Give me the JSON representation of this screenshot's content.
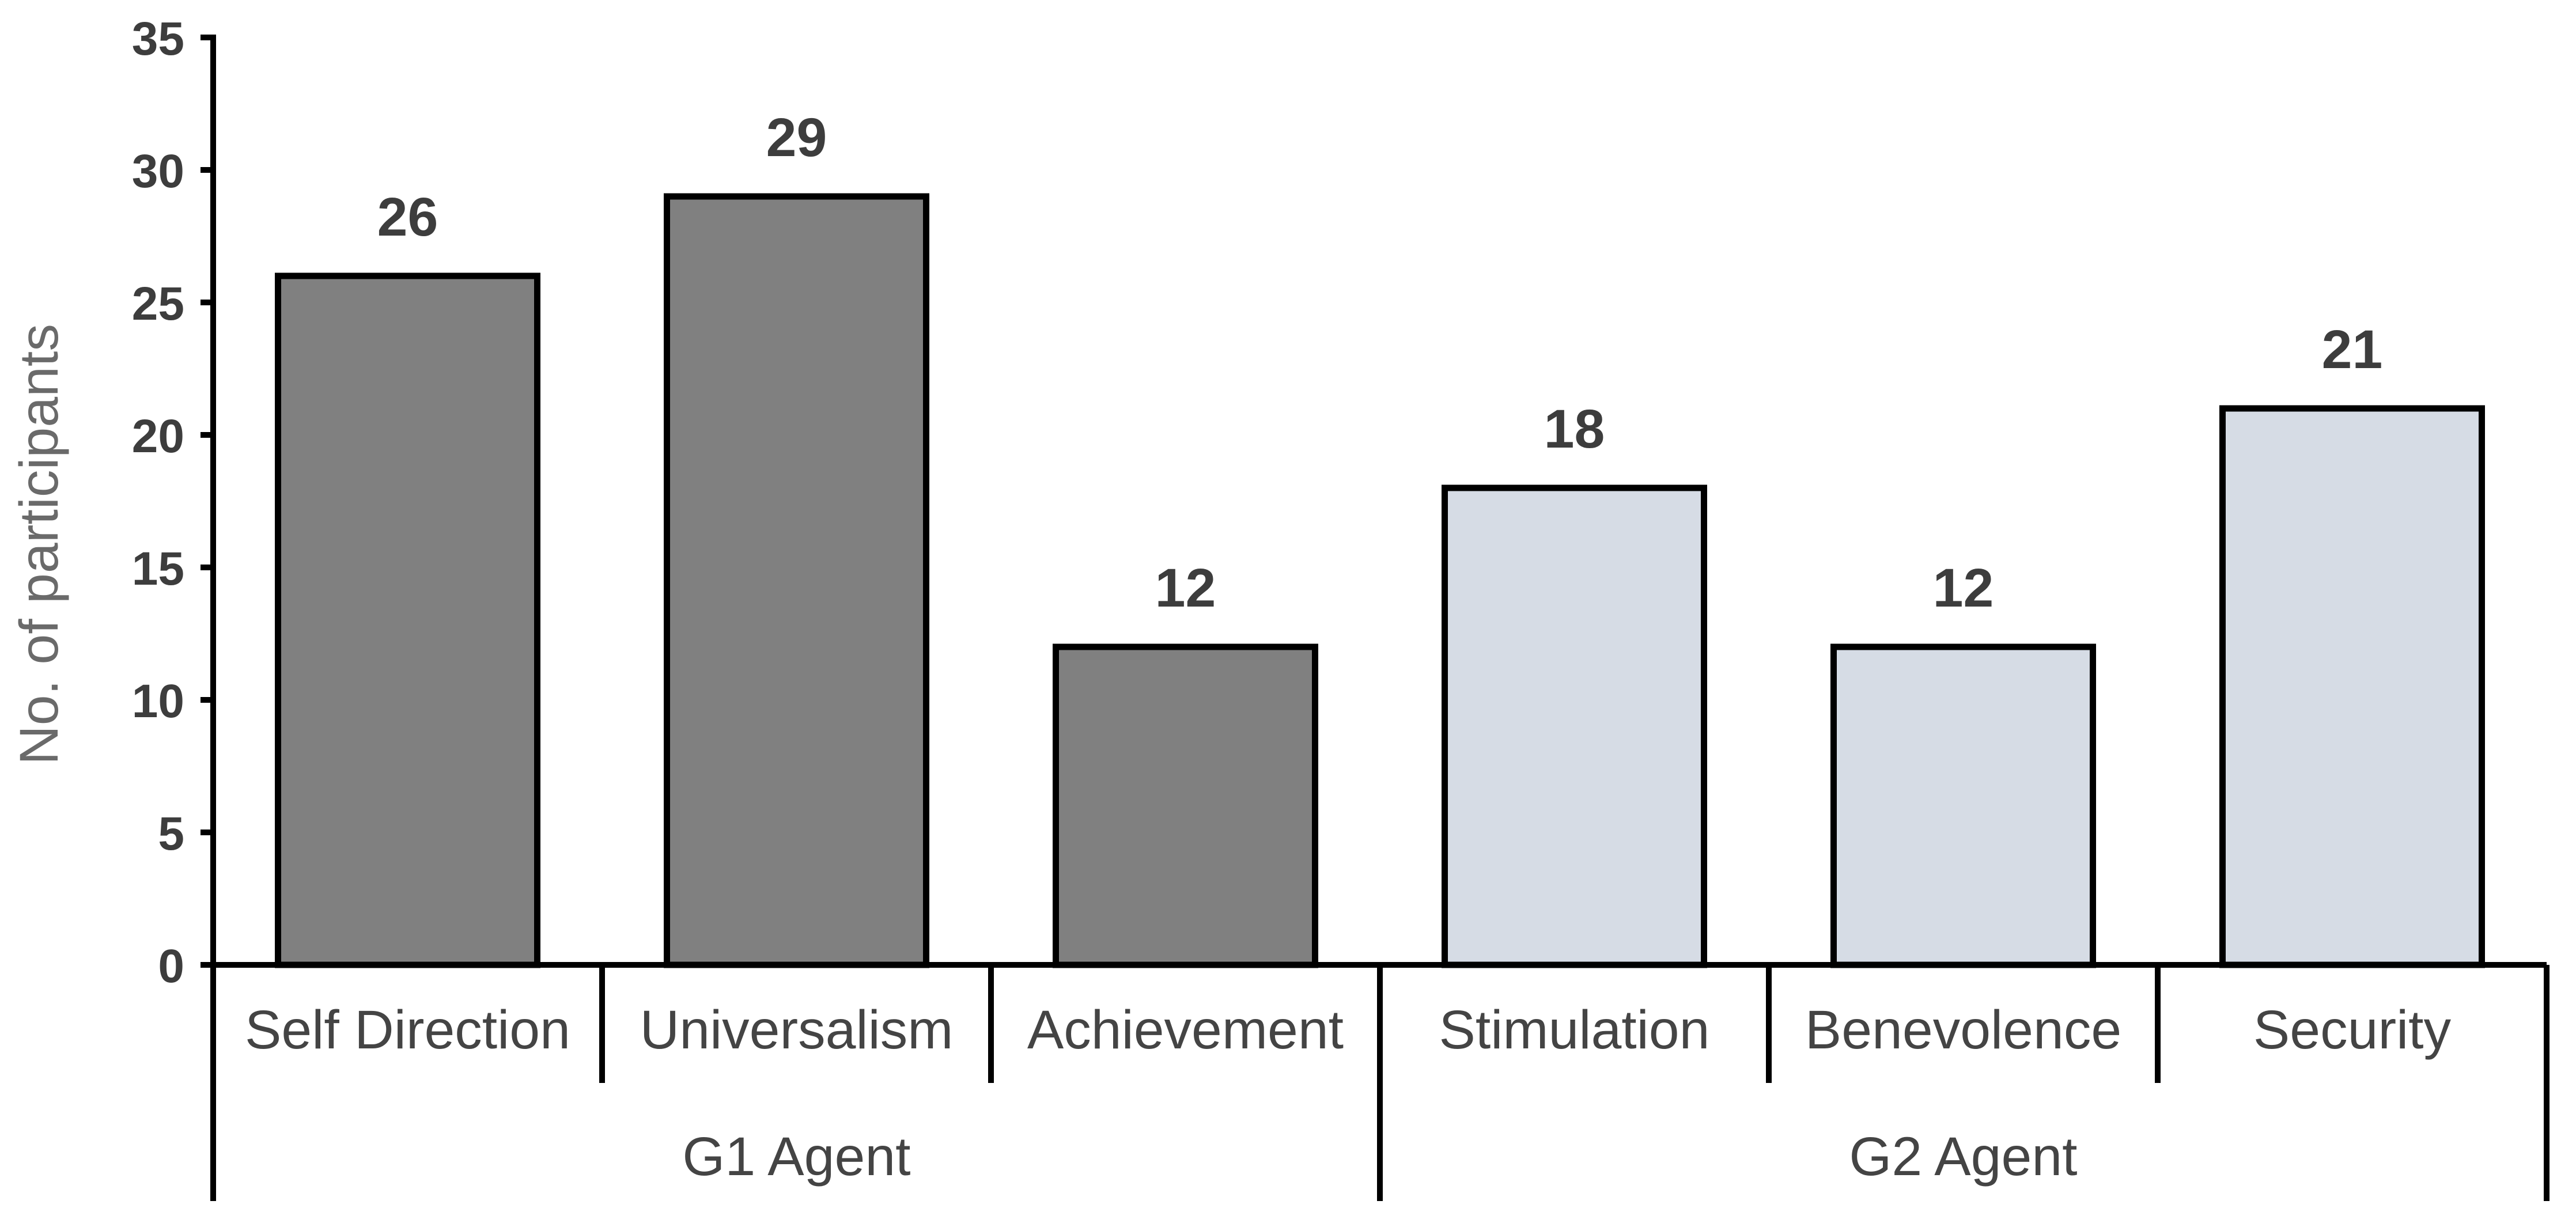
{
  "chart_data": {
    "type": "bar",
    "title": "",
    "xlabel": "",
    "ylabel": "No. of participants",
    "ylim": [
      0,
      35
    ],
    "yticks": [
      0,
      5,
      10,
      15,
      20,
      25,
      30,
      35
    ],
    "categories": [
      "Self Direction",
      "Universalism",
      "Achievement",
      "Stimulation",
      "Benevolence",
      "Security"
    ],
    "values": [
      26,
      29,
      12,
      18,
      12,
      21
    ],
    "groups": [
      {
        "label": "G1 Agent",
        "categories": [
          "Self Direction",
          "Universalism",
          "Achievement"
        ],
        "color": "#808080"
      },
      {
        "label": "G2 Agent",
        "categories": [
          "Stimulation",
          "Benevolence",
          "Security"
        ],
        "color": "#d6dce5"
      }
    ],
    "grid": false,
    "legend": "none"
  }
}
